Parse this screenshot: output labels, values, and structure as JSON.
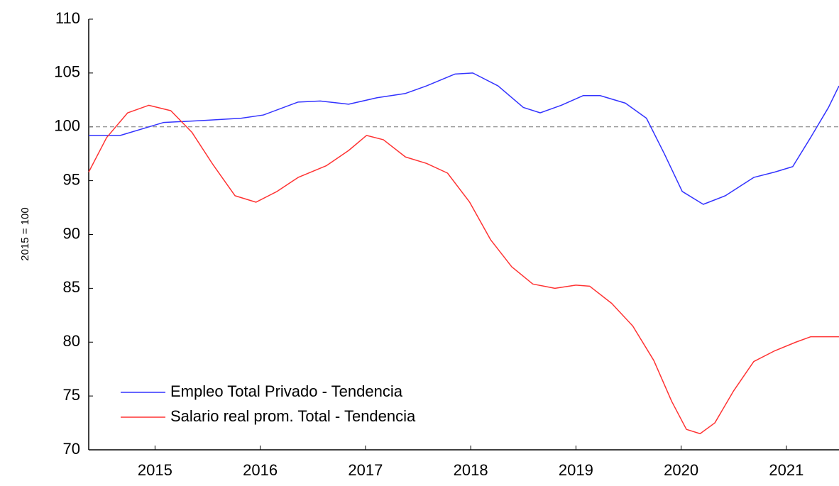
{
  "chart_data": {
    "type": "line",
    "y_label": "2015 = 100",
    "xlim": [
      2014.87,
      2022.0
    ],
    "xticks": [
      {
        "value": 2015.5,
        "label": "2015"
      },
      {
        "value": 2016.5,
        "label": "2016"
      },
      {
        "value": 2017.5,
        "label": "2017"
      },
      {
        "value": 2018.5,
        "label": "2018"
      },
      {
        "value": 2019.5,
        "label": "2019"
      },
      {
        "value": 2020.5,
        "label": "2020"
      },
      {
        "value": 2021.5,
        "label": "2021"
      }
    ],
    "ylim": [
      70,
      110
    ],
    "yticks": [
      70,
      75,
      80,
      85,
      90,
      95,
      100,
      105,
      110
    ],
    "reference_line": 100,
    "legend": "lower-left",
    "series": [
      {
        "name": "Empleo Total Privado - Tendencia",
        "color": "#3333ff",
        "x": [
          2014.87,
          2015.17,
          2015.58,
          2015.98,
          2016.32,
          2016.53,
          2016.86,
          2017.07,
          2017.34,
          2017.61,
          2017.88,
          2018.08,
          2018.35,
          2018.52,
          2018.76,
          2019.0,
          2019.16,
          2019.36,
          2019.57,
          2019.73,
          2019.97,
          2020.17,
          2020.34,
          2020.51,
          2020.71,
          2020.92,
          2021.19,
          2021.39,
          2021.56,
          2021.73,
          2021.9,
          2022.0
        ],
        "values": [
          99.2,
          99.2,
          100.4,
          100.6,
          100.8,
          101.1,
          102.3,
          102.4,
          102.1,
          102.7,
          103.1,
          103.8,
          104.9,
          105.0,
          103.8,
          101.8,
          101.3,
          102.0,
          102.9,
          102.9,
          102.2,
          100.8,
          97.5,
          94.0,
          92.8,
          93.6,
          95.3,
          95.8,
          96.3,
          99.0,
          101.8,
          103.8
        ]
      },
      {
        "name": "Salario real prom. Total - Tendencia",
        "color": "#ff3333",
        "x": [
          2014.87,
          2015.04,
          2015.24,
          2015.44,
          2015.65,
          2015.85,
          2016.05,
          2016.26,
          2016.46,
          2016.66,
          2016.86,
          2017.13,
          2017.34,
          2017.51,
          2017.67,
          2017.88,
          2018.08,
          2018.28,
          2018.49,
          2018.69,
          2018.89,
          2019.09,
          2019.3,
          2019.5,
          2019.63,
          2019.84,
          2020.04,
          2020.24,
          2020.41,
          2020.55,
          2020.68,
          2020.82,
          2021.0,
          2021.19,
          2021.39,
          2021.59,
          2021.73,
          2022.0
        ],
        "values": [
          95.8,
          99.0,
          101.3,
          102.0,
          101.5,
          99.5,
          96.5,
          93.6,
          93.0,
          94.0,
          95.3,
          96.4,
          97.8,
          99.2,
          98.8,
          97.2,
          96.6,
          95.7,
          93.0,
          89.5,
          87.0,
          85.4,
          85.0,
          85.3,
          85.2,
          83.6,
          81.5,
          78.3,
          74.5,
          71.9,
          71.5,
          72.5,
          75.5,
          78.2,
          79.2,
          80.0,
          80.5,
          80.5
        ]
      }
    ]
  }
}
